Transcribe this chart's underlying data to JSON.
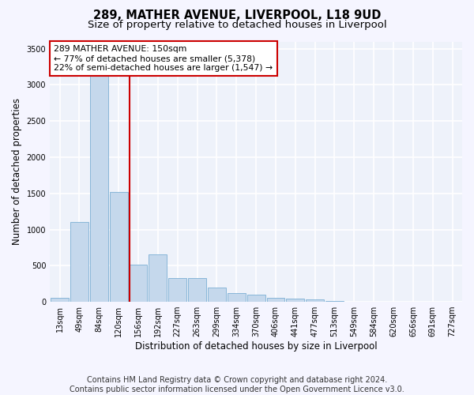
{
  "title": "289, MATHER AVENUE, LIVERPOOL, L18 9UD",
  "subtitle": "Size of property relative to detached houses in Liverpool",
  "xlabel": "Distribution of detached houses by size in Liverpool",
  "ylabel": "Number of detached properties",
  "bar_color": "#c5d8ec",
  "bar_edge_color": "#7bafd4",
  "background_color": "#eef2fa",
  "grid_color": "#ffffff",
  "annotation_line_color": "#cc0000",
  "annotation_box_color": "#cc0000",
  "annotation_text": "289 MATHER AVENUE: 150sqm\n← 77% of detached houses are smaller (5,378)\n22% of semi-detached houses are larger (1,547) →",
  "property_bar_index": 4,
  "categories": [
    "13sqm",
    "49sqm",
    "84sqm",
    "120sqm",
    "156sqm",
    "192sqm",
    "227sqm",
    "263sqm",
    "299sqm",
    "334sqm",
    "370sqm",
    "406sqm",
    "441sqm",
    "477sqm",
    "513sqm",
    "549sqm",
    "584sqm",
    "620sqm",
    "656sqm",
    "691sqm",
    "727sqm"
  ],
  "values": [
    55,
    1100,
    3450,
    1520,
    510,
    660,
    330,
    330,
    195,
    120,
    100,
    60,
    45,
    35,
    12,
    6,
    3,
    2,
    1,
    1,
    1
  ],
  "ylim": [
    0,
    3600
  ],
  "yticks": [
    0,
    500,
    1000,
    1500,
    2000,
    2500,
    3000,
    3500
  ],
  "footer_text": "Contains HM Land Registry data © Crown copyright and database right 2024.\nContains public sector information licensed under the Open Government Licence v3.0.",
  "title_fontsize": 10.5,
  "subtitle_fontsize": 9.5,
  "footer_fontsize": 7,
  "tick_fontsize": 7,
  "label_fontsize": 8.5
}
